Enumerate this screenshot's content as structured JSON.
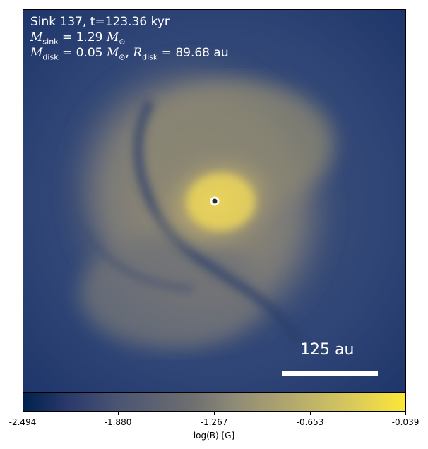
{
  "annotations": {
    "line1": "Sink 137, t=123.36 kyr",
    "m_sink_symbol": "M",
    "m_sink_sub": "sink",
    "m_sink_value": " = 1.29 ",
    "m_sun_symbol": "M",
    "m_sun_sub": "⊙",
    "m_disk_symbol": "M",
    "m_disk_sub": "disk",
    "m_disk_value": " = 0.05 ",
    "r_disk_symbol": "R",
    "r_disk_sub": "disk",
    "r_disk_value": " = 89.68 au",
    "comma": ", "
  },
  "scale_bar": {
    "label": "125 au"
  },
  "colorbar": {
    "label": "log(B) [G]",
    "ticks": [
      "-2.494",
      "-1.880",
      "-1.267",
      "-0.653",
      "-0.039"
    ],
    "range": [
      -2.494,
      -0.039
    ],
    "colormap": "cividis"
  },
  "colors": {
    "background": "#1f3a6e",
    "disk_core": "#e9d45a",
    "sink_marker": "#ffffff"
  }
}
